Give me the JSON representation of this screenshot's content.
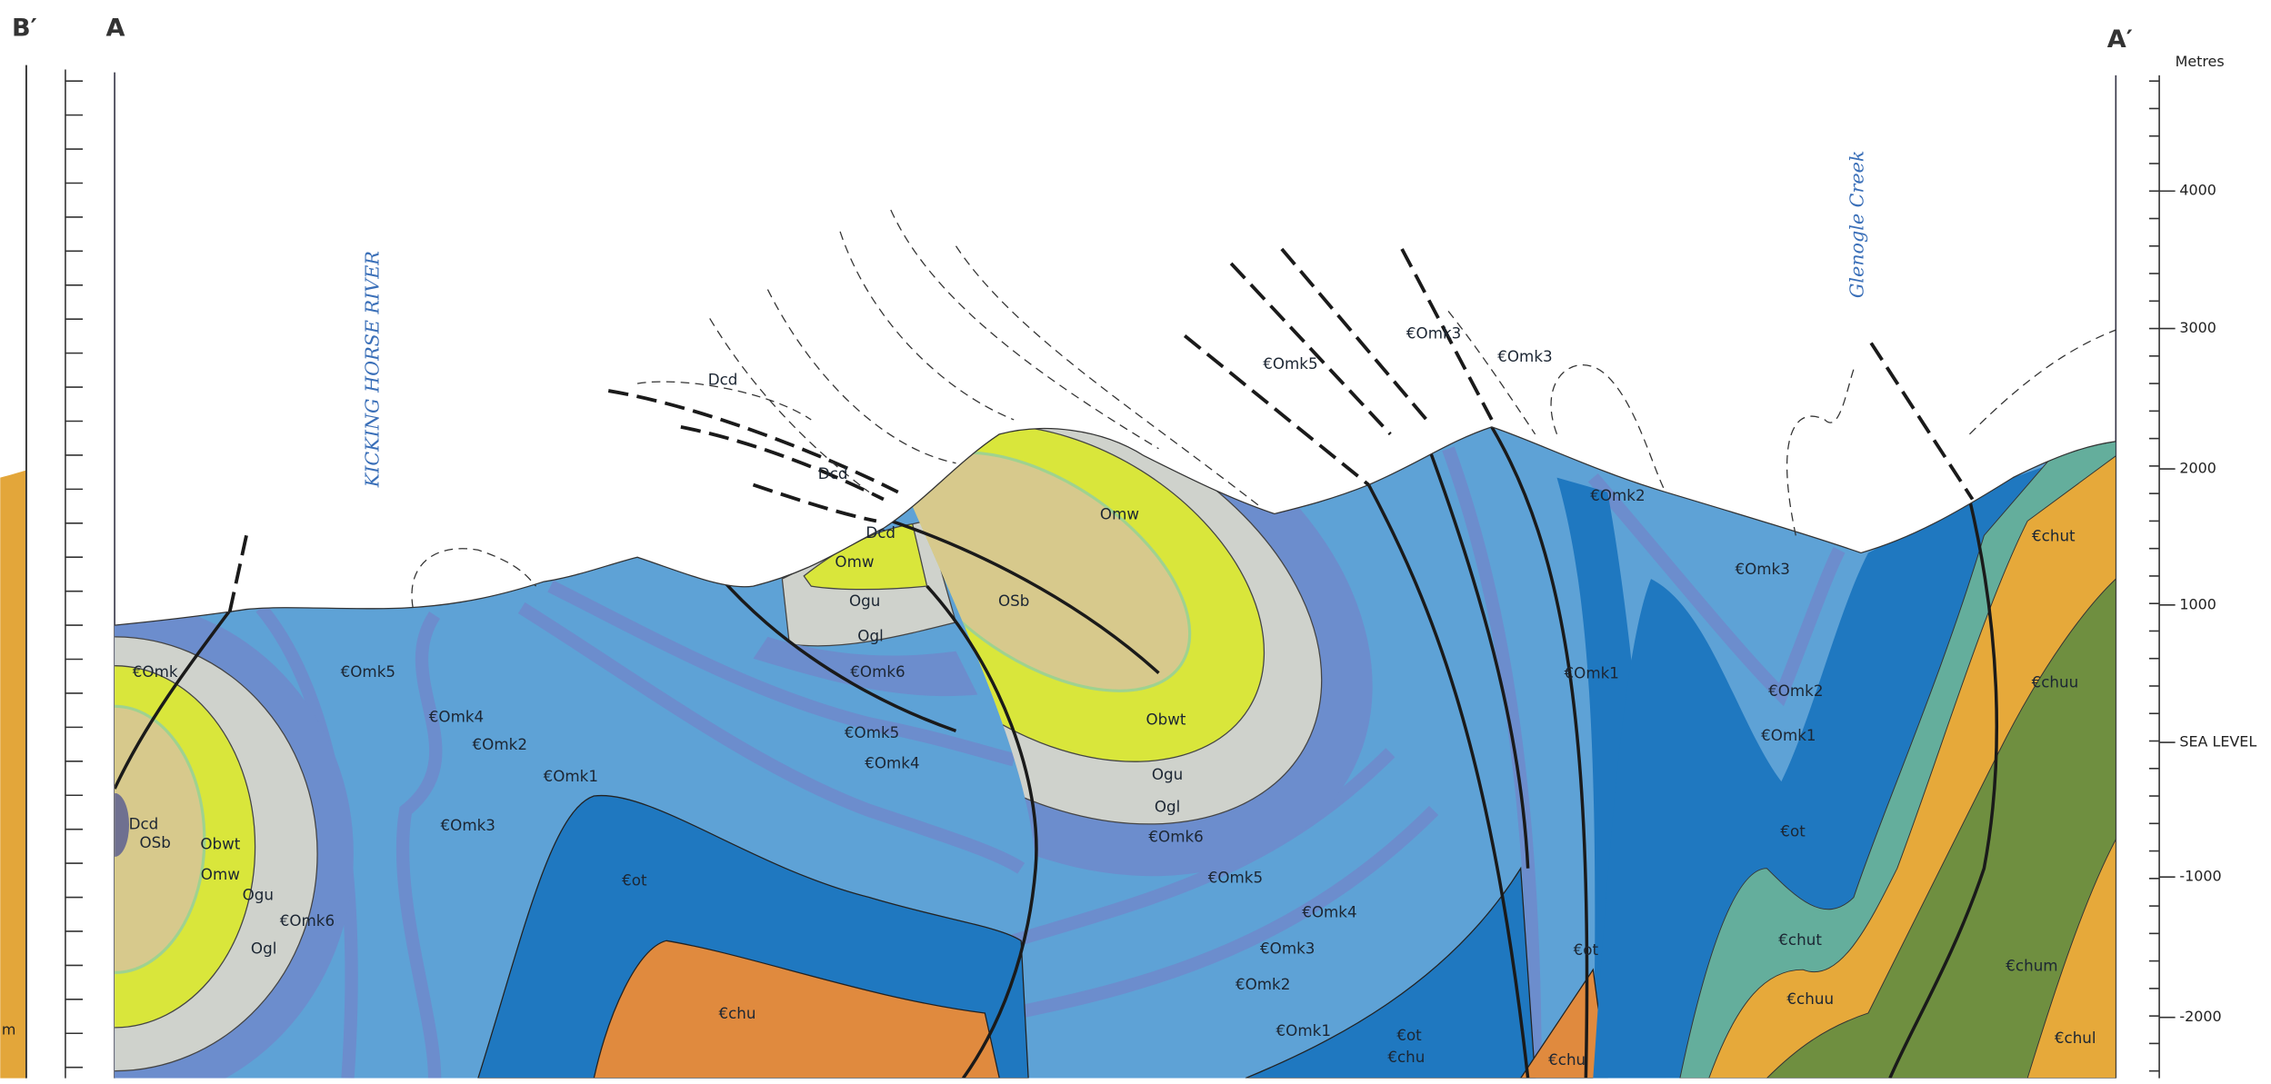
{
  "header": {
    "left_section": "B′",
    "section_start": "A",
    "section_end": "A′",
    "left_edge_label": "m"
  },
  "scale": {
    "title": "Metres",
    "ticks": [
      "4000",
      "3000",
      "2000",
      "1000",
      "SEA LEVEL",
      "-1000",
      "-2000"
    ]
  },
  "places": [
    "KICKING HORSE RIVER",
    "Glenogle Creek"
  ],
  "units": [
    "€Omk",
    "Dcd",
    "OSb",
    "Obwt",
    "Omw",
    "Ogu",
    "€Omk6",
    "Ogl",
    "€Omk5",
    "€Omk4",
    "€Omk2",
    "€Omk1",
    "€Omk3",
    "€ot",
    "€chu",
    "Dcd",
    "Dcd",
    "Dcd",
    "Omw",
    "Ogu",
    "Ogl",
    "€Omk6",
    "€Omk5",
    "€Omk4",
    "OSb",
    "Omw",
    "Obwt",
    "Ogu",
    "Ogl",
    "€Omk6",
    "€Omk5",
    "€Omk4",
    "€Omk3",
    "€Omk2",
    "€Omk1",
    "€ot",
    "€chu",
    "€Omk5",
    "€Omk3",
    "€Omk3",
    "€Omk2",
    "€Omk1",
    "€Omk3",
    "€Omk2",
    "€Omk1",
    "€ot",
    "€chu",
    "€ot",
    "€chut",
    "€chuu",
    "€chut",
    "€chuu",
    "€chum",
    "€chul"
  ]
}
